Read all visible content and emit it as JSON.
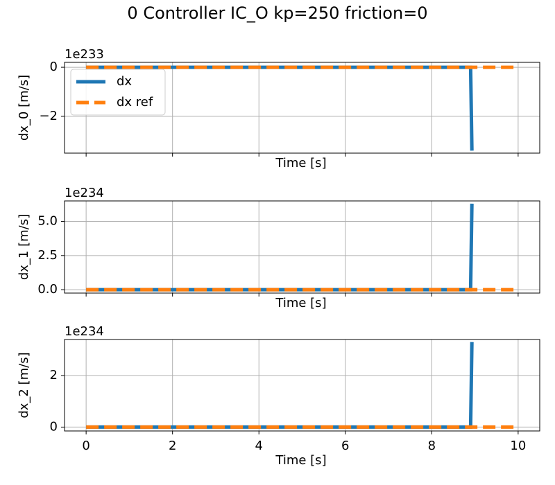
{
  "figure": {
    "title": "0 Controller IC_O kp=250 friction=0"
  },
  "colors": {
    "dx": "#1f77b4",
    "dx_ref": "#ff7f0e",
    "grid": "#b0b0b0",
    "axes": "#000000"
  },
  "legend": {
    "placement": "upper-left (top subplot)",
    "entries": [
      {
        "label": "dx",
        "style": "solid",
        "color": "#1f77b4"
      },
      {
        "label": "dx ref",
        "style": "dashed",
        "color": "#ff7f0e"
      }
    ]
  },
  "chart_data": [
    {
      "type": "line",
      "ylabel": "dx_0 [m/s]",
      "xlabel": "Time [s]",
      "offset_text": "1e233",
      "show_xtick_labels": false,
      "xlim": [
        -0.5,
        10.5
      ],
      "ylim": [
        -3.5,
        0.2
      ],
      "xticks": [
        0,
        2,
        4,
        6,
        8,
        10
      ],
      "xtick_labels": [
        "0",
        "2",
        "4",
        "6",
        "8",
        "10"
      ],
      "yticks": [
        -2,
        0
      ],
      "ytick_labels": [
        "−2",
        "0"
      ],
      "grid": true,
      "series": [
        {
          "name": "dx",
          "key": "dx",
          "x": [
            0,
            8.9,
            8.93
          ],
          "y": [
            0,
            0,
            -3.4
          ]
        },
        {
          "name": "dx ref",
          "key": "dx_ref",
          "x": [
            0,
            10
          ],
          "y": [
            0,
            0
          ]
        }
      ]
    },
    {
      "type": "line",
      "ylabel": "dx_1 [m/s]",
      "xlabel": "Time [s]",
      "offset_text": "1e234",
      "show_xtick_labels": false,
      "xlim": [
        -0.5,
        10.5
      ],
      "ylim": [
        -0.25,
        6.5
      ],
      "xticks": [
        0,
        2,
        4,
        6,
        8,
        10
      ],
      "xtick_labels": [
        "0",
        "2",
        "4",
        "6",
        "8",
        "10"
      ],
      "yticks": [
        0,
        2.5,
        5
      ],
      "ytick_labels": [
        "0.0",
        "2.5",
        "5.0"
      ],
      "grid": true,
      "series": [
        {
          "name": "dx",
          "key": "dx",
          "x": [
            0,
            8.9,
            8.93
          ],
          "y": [
            0,
            0,
            6.3
          ]
        },
        {
          "name": "dx ref",
          "key": "dx_ref",
          "x": [
            0,
            10
          ],
          "y": [
            0,
            0
          ]
        }
      ]
    },
    {
      "type": "line",
      "ylabel": "dx_2 [m/s]",
      "xlabel": "Time [s]",
      "offset_text": "1e234",
      "show_xtick_labels": true,
      "xlim": [
        -0.5,
        10.5
      ],
      "ylim": [
        -0.15,
        3.4
      ],
      "xticks": [
        0,
        2,
        4,
        6,
        8,
        10
      ],
      "xtick_labels": [
        "0",
        "2",
        "4",
        "6",
        "8",
        "10"
      ],
      "yticks": [
        0,
        2
      ],
      "ytick_labels": [
        "0",
        "2"
      ],
      "grid": true,
      "series": [
        {
          "name": "dx",
          "key": "dx",
          "x": [
            0,
            8.9,
            8.93
          ],
          "y": [
            0,
            0,
            3.3
          ]
        },
        {
          "name": "dx ref",
          "key": "dx_ref",
          "x": [
            0,
            10
          ],
          "y": [
            0,
            0
          ]
        }
      ]
    }
  ]
}
